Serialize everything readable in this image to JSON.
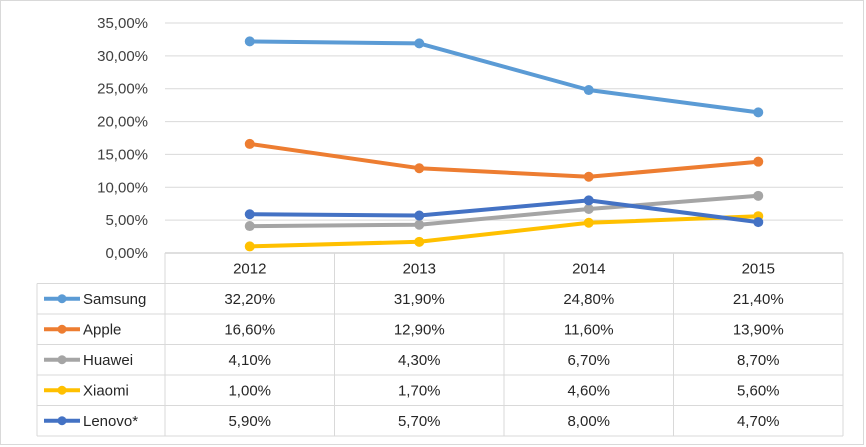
{
  "chart_data": {
    "type": "line",
    "categories": [
      "2012",
      "2013",
      "2014",
      "2015"
    ],
    "ylim": [
      0,
      35
    ],
    "yticks": [
      "0,00%",
      "5,00%",
      "10,00%",
      "15,00%",
      "20,00%",
      "25,00%",
      "30,00%",
      "35,00%"
    ],
    "grid": true,
    "legend": "data-table",
    "series": [
      {
        "name": "Samsung",
        "color": "#5b9bd5",
        "values": [
          32.2,
          31.9,
          24.8,
          21.4
        ],
        "labels": [
          "32,20%",
          "31,90%",
          "24,80%",
          "21,40%"
        ]
      },
      {
        "name": "Apple",
        "color": "#ed7d31",
        "values": [
          16.6,
          12.9,
          11.6,
          13.9
        ],
        "labels": [
          "16,60%",
          "12,90%",
          "11,60%",
          "13,90%"
        ]
      },
      {
        "name": "Huawei",
        "color": "#a5a5a5",
        "values": [
          4.1,
          4.3,
          6.7,
          8.7
        ],
        "labels": [
          "4,10%",
          "4,30%",
          "6,70%",
          "8,70%"
        ]
      },
      {
        "name": "Xiaomi",
        "color": "#ffc000",
        "values": [
          1.0,
          1.7,
          4.6,
          5.6
        ],
        "labels": [
          "1,00%",
          "1,70%",
          "4,60%",
          "5,60%"
        ]
      },
      {
        "name": "Lenovo*",
        "color": "#4472c4",
        "values": [
          5.9,
          5.7,
          8.0,
          4.7
        ],
        "labels": [
          "5,90%",
          "5,70%",
          "8,00%",
          "4,70%"
        ]
      }
    ]
  }
}
